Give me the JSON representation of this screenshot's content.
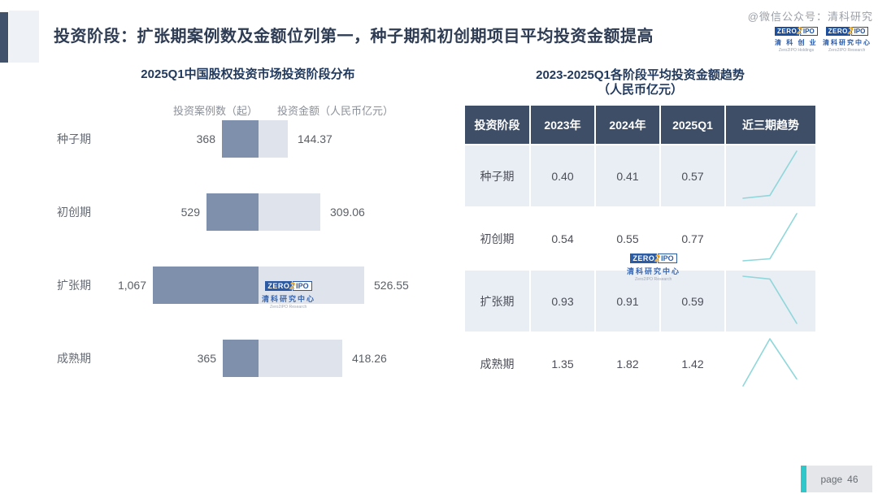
{
  "slide": {
    "title": "投资阶段：扩张期案例数及金额位列第一，种子期和初创期项目平均投资金额提高",
    "wechat_watermark": "@微信公众号：清科研究",
    "page_label": "page",
    "page_number": "46"
  },
  "brand": {
    "zero": "ZERO",
    "two": "2",
    "ipo": "IPO",
    "holdings_cn": "清 科 创 业",
    "holdings_en": "Zero2IPO Holdings",
    "research_cn": "清科研究中心",
    "research_en": "Zero2IPO Research"
  },
  "left_chart": {
    "title": "2025Q1中国股权投资市场投资阶段分布",
    "legend_cases": "投资案例数（起）",
    "legend_amount": "投资金额（人民币亿元）"
  },
  "right_table": {
    "title_line1": "2023-2025Q1各阶段平均投资金额趋势",
    "title_line2": "（人民币亿元）",
    "headers": [
      "投资阶段",
      "2023年",
      "2024年",
      "2025Q1",
      "近三期趋势"
    ]
  },
  "chart_data": [
    {
      "type": "bar",
      "title": "2025Q1中国股权投资市场投资阶段分布",
      "orientation": "horizontal, two series extending left/right from a shared center axis",
      "categories": [
        "种子期",
        "初创期",
        "扩张期",
        "成熟期"
      ],
      "series": [
        {
          "name": "投资案例数（起）",
          "values": [
            368,
            529,
            1067,
            365
          ],
          "labels": [
            "368",
            "529",
            "1,067",
            "365"
          ]
        },
        {
          "name": "投资金额（人民币亿元）",
          "values": [
            144.37,
            309.06,
            526.55,
            418.26
          ],
          "labels": [
            "144.37",
            "309.06",
            "526.55",
            "418.26"
          ]
        }
      ],
      "legend_position": "top",
      "grid": false
    },
    {
      "type": "table",
      "title": "2023-2025Q1各阶段平均投资金额趋势（人民币亿元）",
      "columns": [
        "投资阶段",
        "2023年",
        "2024年",
        "2025Q1",
        "近三期趋势"
      ],
      "rows": [
        {
          "stage": "种子期",
          "values": [
            0.4,
            0.41,
            0.57
          ],
          "labels": [
            "0.40",
            "0.41",
            "0.57"
          ],
          "trend": "flat then sharp rise"
        },
        {
          "stage": "初创期",
          "values": [
            0.54,
            0.55,
            0.77
          ],
          "labels": [
            "0.54",
            "0.55",
            "0.77"
          ],
          "trend": "flat then sharp rise"
        },
        {
          "stage": "扩张期",
          "values": [
            0.93,
            0.91,
            0.59
          ],
          "labels": [
            "0.93",
            "0.91",
            "0.59"
          ],
          "trend": "flat then sharp decline"
        },
        {
          "stage": "成熟期",
          "values": [
            1.35,
            1.82,
            1.42
          ],
          "labels": [
            "1.35",
            "1.82",
            "1.42"
          ],
          "trend": "rise to peak then decline"
        }
      ]
    }
  ],
  "colors": {
    "title_text": "#2e3c54",
    "bar_cases": "#7e90ab",
    "bar_amount": "#dfe3ec",
    "table_header_bg": "#3e4e66",
    "table_row_alt_bg": "#e9edf4",
    "trend_line": "#8ed7da",
    "page_badge_teal": "#2fc7c9",
    "decor_dark": "#42526b",
    "decor_light": "#eef1f6",
    "logo_blue": "#1d4f9c",
    "logo_yellow": "#f2a81d"
  }
}
